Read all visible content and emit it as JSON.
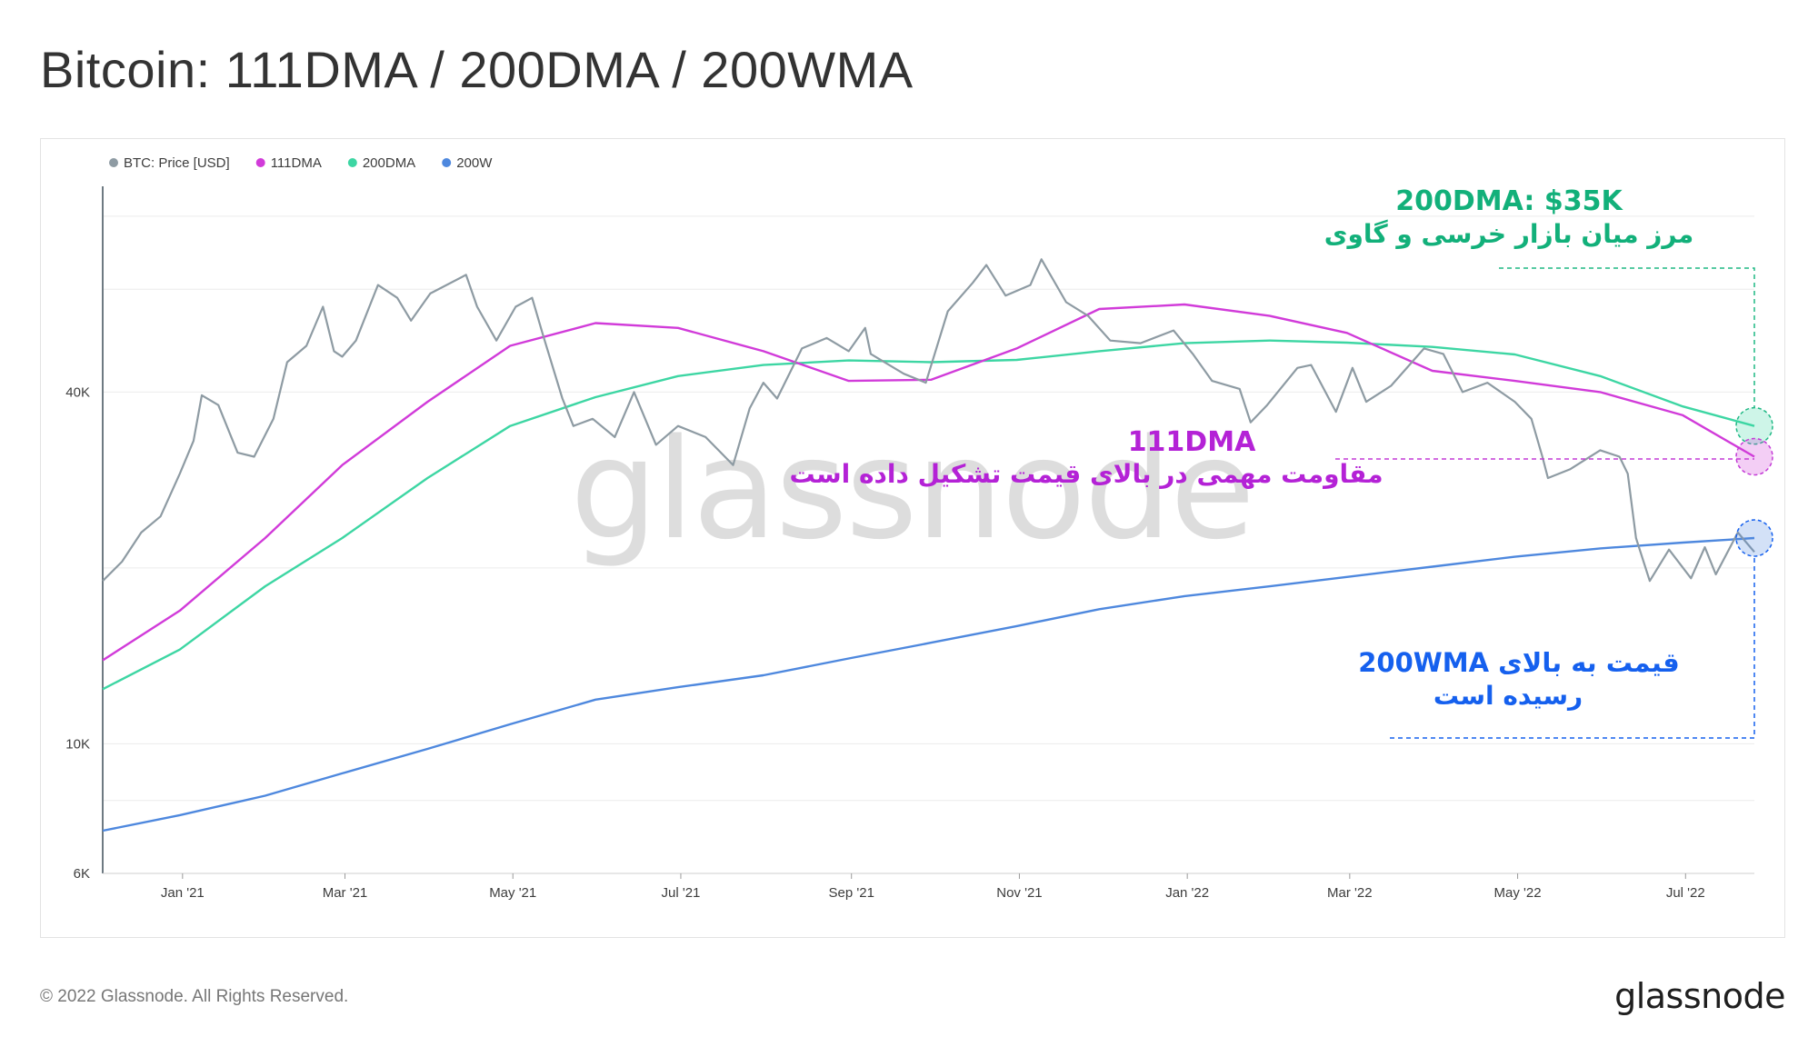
{
  "page": {
    "title": "Bitcoin: 111DMA / 200DMA / 200WMA",
    "copyright": "© 2022 Glassnode. All Rights Reserved.",
    "logo": "glassnode",
    "watermark": "glassnode"
  },
  "chart_data": {
    "type": "line",
    "title": "Bitcoin: 111DMA / 200DMA / 200WMA",
    "y_scale": "log",
    "ylim": [
      6000,
      90000
    ],
    "y_ticks": [
      {
        "value": 6000,
        "label": "6K"
      },
      {
        "value": 10000,
        "label": "10K"
      },
      {
        "value": 40000,
        "label": "40K"
      }
    ],
    "x_ticks": [
      {
        "date": "2021-01-01",
        "label": "Jan '21"
      },
      {
        "date": "2021-03-01",
        "label": "Mar '21"
      },
      {
        "date": "2021-05-01",
        "label": "May '21"
      },
      {
        "date": "2021-07-01",
        "label": "Jul '21"
      },
      {
        "date": "2021-09-01",
        "label": "Sep '21"
      },
      {
        "date": "2021-11-01",
        "label": "Nov '21"
      },
      {
        "date": "2022-01-01",
        "label": "Jan '22"
      },
      {
        "date": "2022-03-01",
        "label": "Mar '22"
      },
      {
        "date": "2022-05-01",
        "label": "May '22"
      },
      {
        "date": "2022-07-01",
        "label": "Jul '22"
      }
    ],
    "xlim": [
      "2020-12-03",
      "2022-07-26"
    ],
    "grid": true,
    "legend_position": "top-left",
    "series": [
      {
        "name": "BTC: Price [USD]",
        "color": "#8e9ba3",
        "points": [
          [
            "2020-12-03",
            19000
          ],
          [
            "2020-12-10",
            20500
          ],
          [
            "2020-12-17",
            23000
          ],
          [
            "2020-12-24",
            24500
          ],
          [
            "2020-12-31",
            29000
          ],
          [
            "2021-01-05",
            33000
          ],
          [
            "2021-01-08",
            39500
          ],
          [
            "2021-01-14",
            38000
          ],
          [
            "2021-01-21",
            31500
          ],
          [
            "2021-01-27",
            31000
          ],
          [
            "2021-02-03",
            36000
          ],
          [
            "2021-02-08",
            45000
          ],
          [
            "2021-02-15",
            48000
          ],
          [
            "2021-02-21",
            56000
          ],
          [
            "2021-02-25",
            47000
          ],
          [
            "2021-02-28",
            46000
          ],
          [
            "2021-03-05",
            49000
          ],
          [
            "2021-03-13",
            61000
          ],
          [
            "2021-03-20",
            58000
          ],
          [
            "2021-03-25",
            53000
          ],
          [
            "2021-04-01",
            59000
          ],
          [
            "2021-04-14",
            63500
          ],
          [
            "2021-04-18",
            56000
          ],
          [
            "2021-04-25",
            49000
          ],
          [
            "2021-05-02",
            56000
          ],
          [
            "2021-05-08",
            58000
          ],
          [
            "2021-05-12",
            50000
          ],
          [
            "2021-05-19",
            39000
          ],
          [
            "2021-05-23",
            35000
          ],
          [
            "2021-05-30",
            36000
          ],
          [
            "2021-06-07",
            33500
          ],
          [
            "2021-06-14",
            40000
          ],
          [
            "2021-06-22",
            32500
          ],
          [
            "2021-06-30",
            35000
          ],
          [
            "2021-07-10",
            33500
          ],
          [
            "2021-07-20",
            30000
          ],
          [
            "2021-07-26",
            37500
          ],
          [
            "2021-07-31",
            41500
          ],
          [
            "2021-08-05",
            39000
          ],
          [
            "2021-08-14",
            47500
          ],
          [
            "2021-08-23",
            49500
          ],
          [
            "2021-08-31",
            47000
          ],
          [
            "2021-09-06",
            51500
          ],
          [
            "2021-09-08",
            46500
          ],
          [
            "2021-09-20",
            43000
          ],
          [
            "2021-09-28",
            41500
          ],
          [
            "2021-10-06",
            55000
          ],
          [
            "2021-10-15",
            61500
          ],
          [
            "2021-10-20",
            66000
          ],
          [
            "2021-10-27",
            58500
          ],
          [
            "2021-11-05",
            61000
          ],
          [
            "2021-11-09",
            67500
          ],
          [
            "2021-11-18",
            57000
          ],
          [
            "2021-11-26",
            54000
          ],
          [
            "2021-12-04",
            49000
          ],
          [
            "2021-12-15",
            48500
          ],
          [
            "2021-12-27",
            51000
          ],
          [
            "2022-01-03",
            46500
          ],
          [
            "2022-01-10",
            41800
          ],
          [
            "2022-01-20",
            40500
          ],
          [
            "2022-01-24",
            35500
          ],
          [
            "2022-01-30",
            38000
          ],
          [
            "2022-02-10",
            44000
          ],
          [
            "2022-02-15",
            44500
          ],
          [
            "2022-02-24",
            37000
          ],
          [
            "2022-03-02",
            44000
          ],
          [
            "2022-03-07",
            38500
          ],
          [
            "2022-03-16",
            41000
          ],
          [
            "2022-03-28",
            47500
          ],
          [
            "2022-04-04",
            46500
          ],
          [
            "2022-04-11",
            40000
          ],
          [
            "2022-04-20",
            41500
          ],
          [
            "2022-04-30",
            38500
          ],
          [
            "2022-05-06",
            36000
          ],
          [
            "2022-05-10",
            31000
          ],
          [
            "2022-05-12",
            28500
          ],
          [
            "2022-05-20",
            29500
          ],
          [
            "2022-05-31",
            31800
          ],
          [
            "2022-06-07",
            31000
          ],
          [
            "2022-06-10",
            29000
          ],
          [
            "2022-06-13",
            22500
          ],
          [
            "2022-06-18",
            19000
          ],
          [
            "2022-06-25",
            21500
          ],
          [
            "2022-07-03",
            19200
          ],
          [
            "2022-07-08",
            21700
          ],
          [
            "2022-07-12",
            19500
          ],
          [
            "2022-07-20",
            23000
          ],
          [
            "2022-07-26",
            21300
          ]
        ]
      },
      {
        "name": "111DMA",
        "color": "#d13bd9",
        "points": [
          [
            "2020-12-03",
            13900
          ],
          [
            "2020-12-31",
            16900
          ],
          [
            "2021-01-31",
            22500
          ],
          [
            "2021-02-28",
            30000
          ],
          [
            "2021-03-31",
            38500
          ],
          [
            "2021-04-30",
            48000
          ],
          [
            "2021-05-31",
            52500
          ],
          [
            "2021-06-30",
            51500
          ],
          [
            "2021-07-31",
            47000
          ],
          [
            "2021-08-31",
            41800
          ],
          [
            "2021-09-30",
            42000
          ],
          [
            "2021-10-31",
            47500
          ],
          [
            "2021-11-30",
            55500
          ],
          [
            "2021-12-31",
            56500
          ],
          [
            "2022-01-31",
            54000
          ],
          [
            "2022-02-28",
            50500
          ],
          [
            "2022-03-31",
            43500
          ],
          [
            "2022-04-30",
            41800
          ],
          [
            "2022-05-31",
            40000
          ],
          [
            "2022-06-30",
            36500
          ],
          [
            "2022-07-26",
            31000
          ]
        ]
      },
      {
        "name": "200DMA",
        "color": "#3dd6a3",
        "points": [
          [
            "2020-12-03",
            12400
          ],
          [
            "2020-12-31",
            14500
          ],
          [
            "2021-01-31",
            18600
          ],
          [
            "2021-02-28",
            22500
          ],
          [
            "2021-03-31",
            28500
          ],
          [
            "2021-04-30",
            35000
          ],
          [
            "2021-05-31",
            39200
          ],
          [
            "2021-06-30",
            42600
          ],
          [
            "2021-07-31",
            44500
          ],
          [
            "2021-08-31",
            45300
          ],
          [
            "2021-09-30",
            45000
          ],
          [
            "2021-10-31",
            45400
          ],
          [
            "2021-11-30",
            47000
          ],
          [
            "2021-12-31",
            48500
          ],
          [
            "2022-01-31",
            49000
          ],
          [
            "2022-02-28",
            48600
          ],
          [
            "2022-03-31",
            47800
          ],
          [
            "2022-04-30",
            46400
          ],
          [
            "2022-05-31",
            42600
          ],
          [
            "2022-06-30",
            37800
          ],
          [
            "2022-07-26",
            35000
          ]
        ]
      },
      {
        "name": "200W",
        "color": "#4e88de",
        "points": [
          [
            "2020-12-03",
            7100
          ],
          [
            "2020-12-31",
            7550
          ],
          [
            "2021-01-31",
            8150
          ],
          [
            "2021-02-28",
            8900
          ],
          [
            "2021-03-31",
            9800
          ],
          [
            "2021-04-30",
            10800
          ],
          [
            "2021-05-31",
            11900
          ],
          [
            "2021-06-30",
            12500
          ],
          [
            "2021-07-31",
            13100
          ],
          [
            "2021-08-31",
            14000
          ],
          [
            "2021-09-30",
            14900
          ],
          [
            "2021-10-31",
            15900
          ],
          [
            "2021-11-30",
            17000
          ],
          [
            "2021-12-31",
            17900
          ],
          [
            "2022-01-31",
            18600
          ],
          [
            "2022-02-28",
            19300
          ],
          [
            "2022-03-31",
            20100
          ],
          [
            "2022-04-30",
            20900
          ],
          [
            "2022-05-31",
            21600
          ],
          [
            "2022-06-30",
            22100
          ],
          [
            "2022-07-26",
            22500
          ]
        ]
      }
    ],
    "annotations": [
      {
        "id": "dma200",
        "color": "#12b07a",
        "lines": [
          "200DMA: $35K",
          "مرز میان بازار خرسی و گاوی"
        ]
      },
      {
        "id": "dma111",
        "color": "#b422d6",
        "lines": [
          "111DMA",
          "مقاومت مهمی در بالای قیمت تشکیل داده است"
        ]
      },
      {
        "id": "wma200",
        "color": "#1560ee",
        "lines": [
          "قیمت به بالای 200WMA",
          "رسیده است"
        ]
      }
    ]
  }
}
